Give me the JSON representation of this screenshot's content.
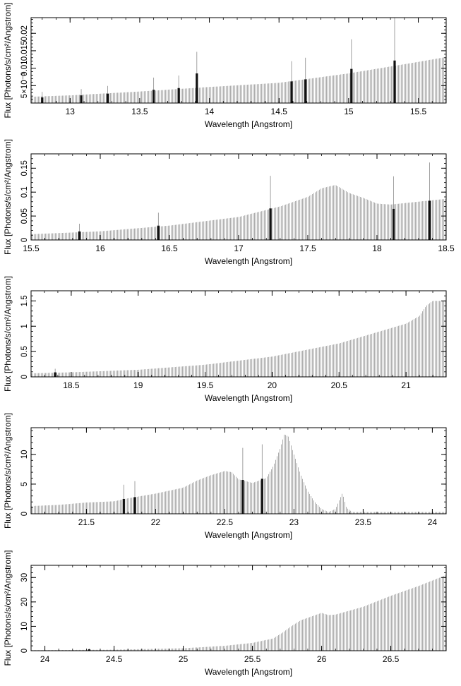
{
  "chart_data": [
    {
      "type": "bar",
      "xlabel": "Wavelength [Angstrom]",
      "ylabel": "Flux [Photons/s/cm²/Angstrom]",
      "xlim": [
        12.72,
        15.7
      ],
      "ylim": [
        0,
        0.0245
      ],
      "x_ticks": [
        13,
        13.5,
        14,
        14.5,
        15,
        15.5
      ],
      "x_tick_labels": [
        "13",
        "13.5",
        "14",
        "14.5",
        "15",
        "15.5"
      ],
      "y_ticks": [
        0.005,
        0.01,
        0.015,
        0.02
      ],
      "y_tick_labels": [
        "5×10⁻³",
        "0.01",
        "0.015",
        "0.02"
      ],
      "continuum": [
        [
          12.72,
          0.0018
        ],
        [
          13.0,
          0.0022
        ],
        [
          13.5,
          0.0033
        ],
        [
          14.0,
          0.0046
        ],
        [
          14.5,
          0.0058
        ],
        [
          15.0,
          0.0085
        ],
        [
          15.5,
          0.0118
        ],
        [
          15.7,
          0.0132
        ]
      ],
      "lines": [
        {
          "x": 12.8,
          "y": 0.0016,
          "err": 0.0016
        },
        {
          "x": 13.08,
          "y": 0.0022,
          "err": 0.0018
        },
        {
          "x": 13.27,
          "y": 0.0027,
          "err": 0.0022
        },
        {
          "x": 13.6,
          "y": 0.0038,
          "err": 0.0035
        },
        {
          "x": 13.78,
          "y": 0.0043,
          "err": 0.0036
        },
        {
          "x": 13.91,
          "y": 0.0085,
          "err": 0.0062
        },
        {
          "x": 14.59,
          "y": 0.0062,
          "err": 0.0058
        },
        {
          "x": 14.69,
          "y": 0.0068,
          "err": 0.0062
        },
        {
          "x": 15.02,
          "y": 0.0098,
          "err": 0.0085
        },
        {
          "x": 15.33,
          "y": 0.0122,
          "err": 0.0128
        }
      ]
    },
    {
      "type": "bar",
      "xlabel": "Wavelength [Angstrom]",
      "ylabel": "Flux [Photons/s/cm²/Angstrom]",
      "xlim": [
        15.5,
        18.5
      ],
      "ylim": [
        0,
        0.18
      ],
      "x_ticks": [
        15.5,
        16,
        16.5,
        17,
        17.5,
        18,
        18.5
      ],
      "x_tick_labels": [
        "15.5",
        "16",
        "16.5",
        "17",
        "17.5",
        "18",
        "18.5"
      ],
      "y_ticks": [
        0,
        0.05,
        0.1,
        0.15
      ],
      "y_tick_labels": [
        "0",
        "0.05",
        "0.1",
        "0.15"
      ],
      "continuum": [
        [
          15.5,
          0.012
        ],
        [
          16.0,
          0.018
        ],
        [
          16.5,
          0.03
        ],
        [
          17.0,
          0.048
        ],
        [
          17.3,
          0.07
        ],
        [
          17.5,
          0.09
        ],
        [
          17.6,
          0.108
        ],
        [
          17.7,
          0.115
        ],
        [
          17.8,
          0.098
        ],
        [
          17.9,
          0.088
        ],
        [
          18.0,
          0.076
        ],
        [
          18.05,
          0.075
        ],
        [
          18.1,
          0.074
        ],
        [
          18.3,
          0.08
        ],
        [
          18.5,
          0.086
        ]
      ],
      "lines": [
        {
          "x": 15.85,
          "y": 0.018,
          "err": 0.016
        },
        {
          "x": 16.42,
          "y": 0.03,
          "err": 0.027
        },
        {
          "x": 17.23,
          "y": 0.066,
          "err": 0.068
        },
        {
          "x": 18.12,
          "y": 0.065,
          "err": 0.068
        },
        {
          "x": 18.38,
          "y": 0.082,
          "err": 0.08
        }
      ]
    },
    {
      "type": "bar",
      "xlabel": "Wavelength [Angstrom]",
      "ylabel": "Flux [Photons/s/cm²/Angstrom]",
      "xlim": [
        18.2,
        21.3
      ],
      "ylim": [
        0,
        1.7
      ],
      "x_ticks": [
        18.5,
        19,
        19.5,
        20,
        20.5,
        21
      ],
      "x_tick_labels": [
        "18.5",
        "19",
        "19.5",
        "20",
        "20.5",
        "21"
      ],
      "y_ticks": [
        0,
        0.5,
        1,
        1.5
      ],
      "y_tick_labels": [
        "0",
        "0.5",
        "1",
        "1.5"
      ],
      "continuum": [
        [
          18.2,
          0.07
        ],
        [
          18.5,
          0.09
        ],
        [
          19.0,
          0.14
        ],
        [
          19.5,
          0.24
        ],
        [
          20.0,
          0.4
        ],
        [
          20.5,
          0.66
        ],
        [
          21.0,
          1.05
        ],
        [
          21.1,
          1.2
        ],
        [
          21.15,
          1.4
        ],
        [
          21.2,
          1.5
        ],
        [
          21.3,
          1.5
        ]
      ],
      "lines": [
        {
          "x": 18.38,
          "y": 0.09,
          "err": 0.07
        }
      ]
    },
    {
      "type": "bar",
      "xlabel": "Wavelength [Angstrom]",
      "ylabel": "Flux [Photons/s/cm²/Angstrom]",
      "xlim": [
        21.1,
        24.1
      ],
      "ylim": [
        0,
        14.5
      ],
      "x_ticks": [
        21.5,
        22,
        22.5,
        23,
        23.5,
        24
      ],
      "x_tick_labels": [
        "21.5",
        "22",
        "22.5",
        "23",
        "23.5",
        "24"
      ],
      "y_ticks": [
        0,
        5,
        10
      ],
      "y_tick_labels": [
        "0",
        "5",
        "10"
      ],
      "continuum": [
        [
          21.1,
          1.3
        ],
        [
          21.3,
          1.5
        ],
        [
          21.5,
          1.9
        ],
        [
          21.7,
          2.1
        ],
        [
          21.8,
          2.6
        ],
        [
          22.0,
          3.4
        ],
        [
          22.2,
          4.4
        ],
        [
          22.3,
          5.6
        ],
        [
          22.4,
          6.5
        ],
        [
          22.5,
          7.2
        ],
        [
          22.55,
          7.0
        ],
        [
          22.6,
          5.8
        ],
        [
          22.7,
          5.2
        ],
        [
          22.8,
          6.0
        ],
        [
          22.85,
          8.0
        ],
        [
          22.9,
          11.0
        ],
        [
          22.93,
          13.4
        ],
        [
          22.96,
          13.0
        ],
        [
          23.0,
          10.0
        ],
        [
          23.05,
          6.5
        ],
        [
          23.1,
          3.8
        ],
        [
          23.15,
          2.0
        ],
        [
          23.2,
          0.8
        ],
        [
          23.25,
          0.3
        ],
        [
          23.3,
          0.8
        ],
        [
          23.35,
          3.5
        ],
        [
          23.38,
          1.0
        ],
        [
          23.42,
          0.3
        ],
        [
          24.1,
          0.3
        ]
      ],
      "lines": [
        {
          "x": 21.77,
          "y": 2.5,
          "err": 2.4
        },
        {
          "x": 21.85,
          "y": 2.8,
          "err": 2.7
        },
        {
          "x": 22.63,
          "y": 5.7,
          "err": 5.4
        },
        {
          "x": 22.77,
          "y": 5.9,
          "err": 5.8
        }
      ]
    },
    {
      "type": "bar",
      "xlabel": "Wavelength [Angstrom]",
      "ylabel": "Flux [Photons/s/cm²/Angstrom]",
      "xlim": [
        23.9,
        26.9
      ],
      "ylim": [
        0,
        35
      ],
      "x_ticks": [
        24,
        24.5,
        25,
        25.5,
        26,
        26.5
      ],
      "x_tick_labels": [
        "24",
        "24.5",
        "25",
        "25.5",
        "26",
        "26.5"
      ],
      "y_ticks": [
        0,
        10,
        20,
        30
      ],
      "y_tick_labels": [
        "0",
        "10",
        "20",
        "30"
      ],
      "continuum": [
        [
          23.9,
          0.2
        ],
        [
          24.5,
          0.4
        ],
        [
          25.0,
          1.0
        ],
        [
          25.3,
          2.0
        ],
        [
          25.5,
          3.2
        ],
        [
          25.65,
          5.0
        ],
        [
          25.72,
          7.5
        ],
        [
          25.78,
          10.0
        ],
        [
          25.85,
          12.5
        ],
        [
          25.95,
          14.5
        ],
        [
          26.0,
          15.5
        ],
        [
          26.05,
          14.6
        ],
        [
          26.1,
          14.8
        ],
        [
          26.3,
          18.0
        ],
        [
          26.5,
          22.5
        ],
        [
          26.7,
          26.5
        ],
        [
          26.9,
          31.0
        ]
      ],
      "lines": [
        {
          "x": 24.32,
          "y": 0.6,
          "err": 0.3
        }
      ]
    }
  ]
}
